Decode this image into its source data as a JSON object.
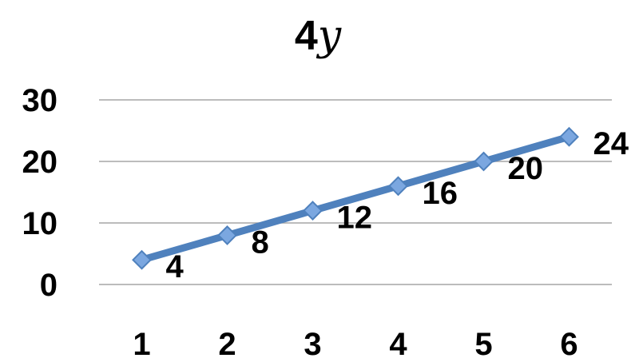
{
  "chart_data": {
    "type": "line",
    "title": {
      "coefficient": "4",
      "variable": "y"
    },
    "xlabel": "",
    "ylabel": "",
    "categories": [
      "1",
      "2",
      "3",
      "4",
      "5",
      "6"
    ],
    "series": [
      {
        "values": [
          4,
          8,
          12,
          16,
          20,
          24
        ],
        "color": "#4F81BD",
        "marker": "diamond",
        "marker_color": "#7BA7E0"
      }
    ],
    "data_labels": [
      "4",
      "8",
      "12",
      "16",
      "20",
      "24"
    ],
    "ylim": [
      0,
      30
    ],
    "yticks": [
      "0",
      "10",
      "20",
      "30"
    ],
    "grid": true,
    "gridline_color": "#A6A6A6",
    "legend": "none"
  }
}
